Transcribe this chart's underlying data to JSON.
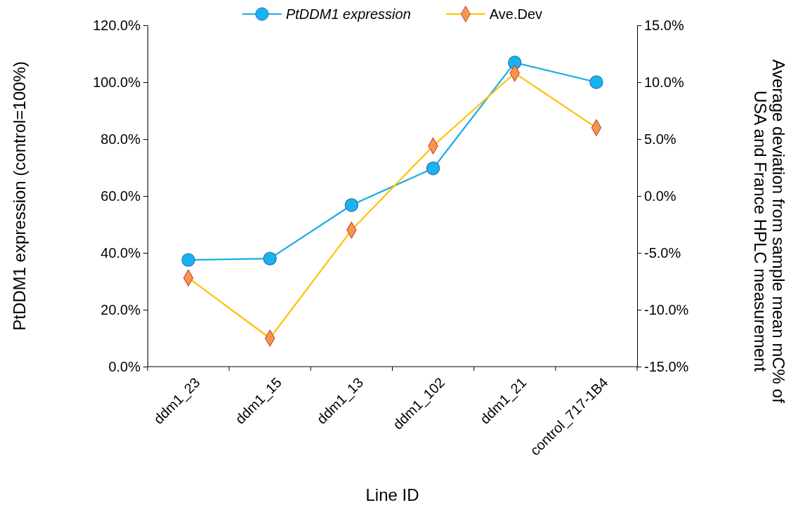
{
  "chart_data": {
    "type": "line",
    "xlabel": "Line ID",
    "ylabel": "PtDDM1 expression (control=100%)",
    "y2label": "Average deviation from sample mean mC% of\nUSA and France HPLC measurement",
    "categories": [
      "ddm1_23",
      "ddm1_15",
      "ddm1_13",
      "ddm1_102",
      "ddm1_21",
      "control_717-1B4"
    ],
    "series": [
      {
        "name": "PtDDM1 expression",
        "color": "#1aabe6",
        "marker": "circle",
        "values": [
          0.375,
          0.38,
          0.568,
          0.697,
          1.069,
          1.0
        ]
      },
      {
        "name": "Ave.Dev",
        "color": "#ffc000",
        "marker": "diamond",
        "axis": "y2",
        "values": [
          -0.072,
          -0.125,
          -0.03,
          0.044,
          0.108,
          0.06
        ]
      }
    ],
    "ylim": [
      0,
      1.2
    ],
    "yticks": [
      {
        "value": 0,
        "label": "0.0%"
      },
      {
        "value": 0.2,
        "label": "20.0%"
      },
      {
        "value": 0.4,
        "label": "40.0%"
      },
      {
        "value": 0.6,
        "label": "60.0%"
      },
      {
        "value": 0.8,
        "label": "80.0%"
      },
      {
        "value": 1.0,
        "label": "100.0%"
      },
      {
        "value": 1.2,
        "label": "120.0%"
      }
    ],
    "y2lim": [
      -0.15,
      0.15
    ],
    "y2ticks": [
      {
        "value": -0.15,
        "label": "-15.0%"
      },
      {
        "value": -0.1,
        "label": "-10.0%"
      },
      {
        "value": -0.05,
        "label": "-5.0%"
      },
      {
        "value": 0,
        "label": "0.0%"
      },
      {
        "value": 0.05,
        "label": "5.0%"
      },
      {
        "value": 0.1,
        "label": "10.0%"
      },
      {
        "value": 0.15,
        "label": "15.0%"
      }
    ],
    "legend": "top",
    "grid": false
  }
}
